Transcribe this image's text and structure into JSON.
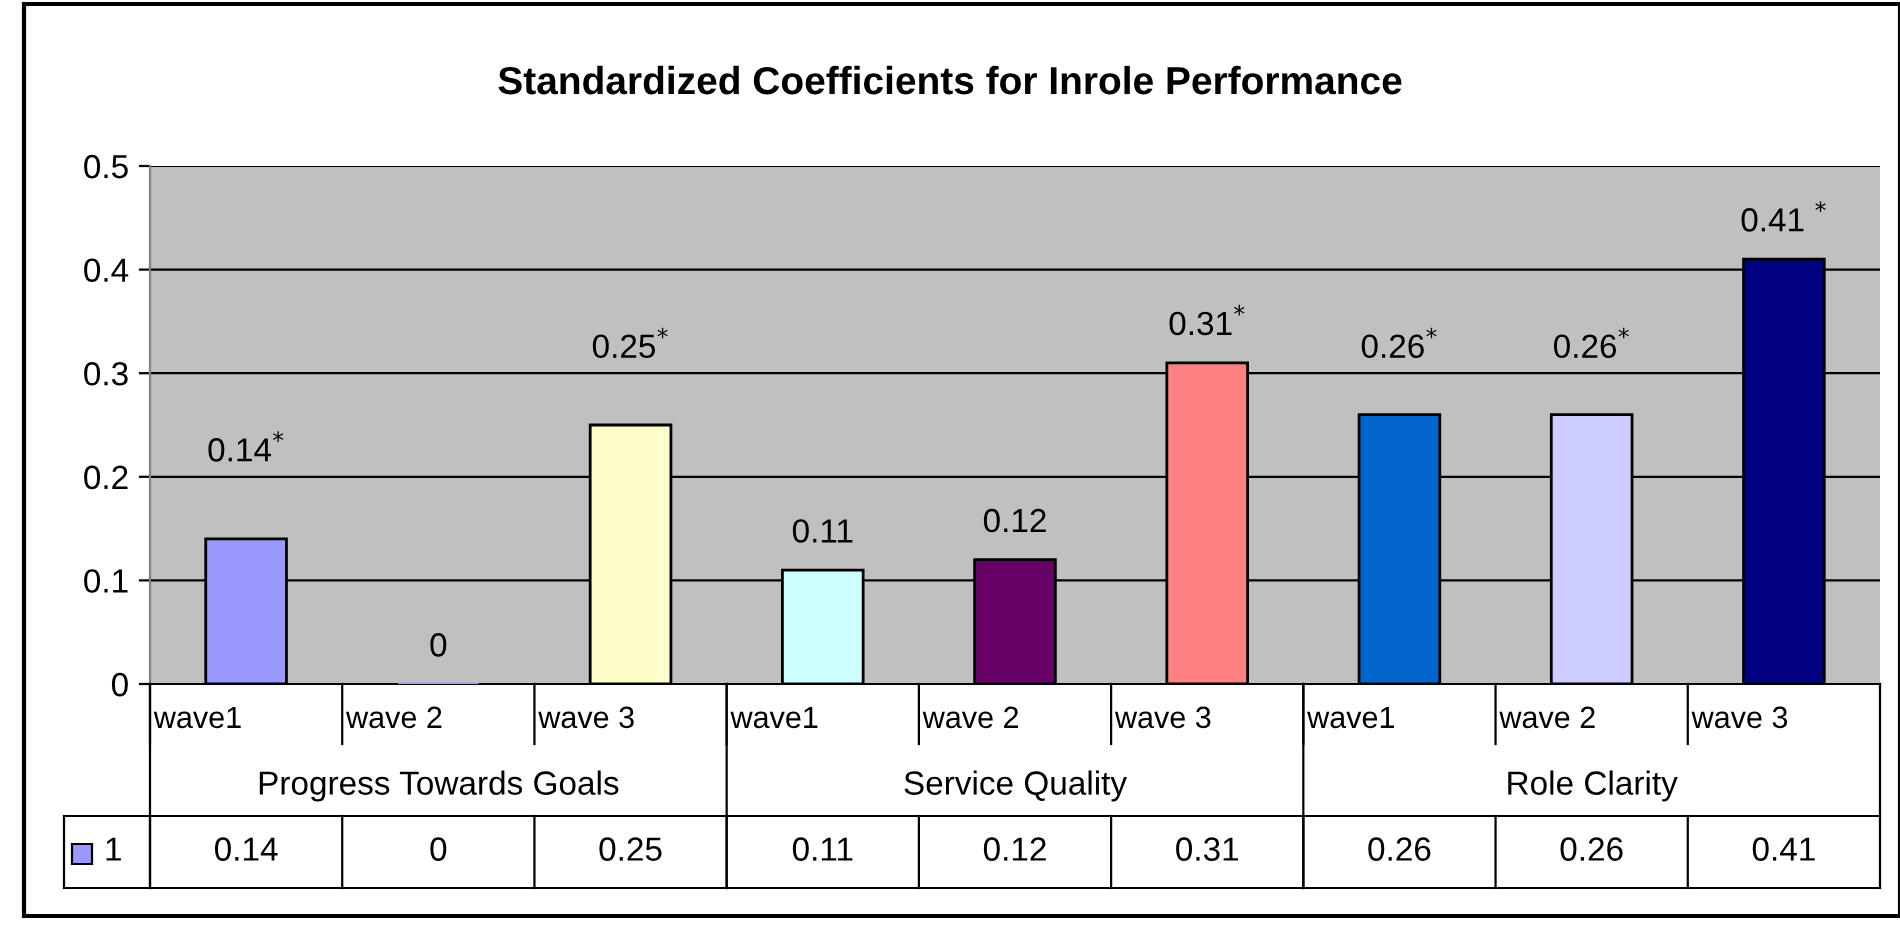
{
  "chart_data": {
    "type": "bar",
    "title": "Standardized Coefficients for Inrole Performance",
    "categories": [
      "wave1",
      "wave 2",
      "wave 3",
      "wave1",
      "wave 2",
      "wave 3",
      "wave1",
      "wave 2",
      "wave 3"
    ],
    "annotations": [
      "Progress Towards Goals",
      "Service Quality",
      "Role Clarity",
      "0.14",
      "0",
      "0.25",
      "0.11",
      "0.12",
      "0.31",
      "0.26",
      "0.26",
      "0.41"
    ],
    "series": [
      {
        "name": "1",
        "colors": [
          "#9999ff",
          "#9999ff",
          "#ffffcc",
          "#ccffff",
          "#660066",
          "#ff8080",
          "#0066cc",
          "#ccccff",
          "#000080"
        ],
        "values": [
          0.14,
          0,
          0.25,
          0.11,
          0.12,
          0.31,
          0.26,
          0.26,
          0.41
        ],
        "value_labels": [
          "0.14$^{*}$",
          "0",
          "0.25$^{*}$",
          "0.11",
          "0.12",
          "0.31$^{*}$",
          "0.26$^{*}$",
          "0.26$^{*}$",
          "0.41 $^{*}$"
        ]
      }
    ],
    "ylim": [
      0,
      0.5
    ],
    "yticks": [
      0,
      0.1,
      0.2,
      0.3,
      0.4,
      0.5
    ],
    "grid": "y",
    "legend": "bottom"
  }
}
